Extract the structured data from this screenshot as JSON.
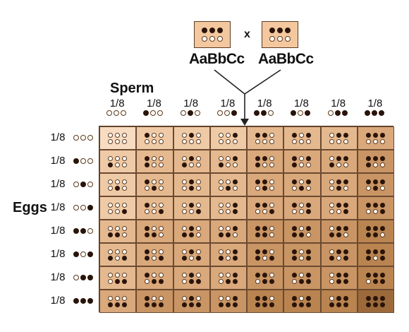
{
  "parents": {
    "left": {
      "label": "AaBbCc",
      "alleles": [
        "d",
        "d",
        "d",
        "w",
        "w",
        "w"
      ]
    },
    "cross_symbol": "x",
    "right": {
      "label": "AaBbCc",
      "alleles": [
        "d",
        "d",
        "d",
        "w",
        "w",
        "w"
      ]
    }
  },
  "axes": {
    "sperm_title": "Sperm",
    "eggs_title": "Eggs"
  },
  "fraction_label": "1/8",
  "gametes": [
    {
      "fraction": "1/8",
      "alleles": [
        "w",
        "w",
        "w"
      ]
    },
    {
      "fraction": "1/8",
      "alleles": [
        "d",
        "w",
        "w"
      ]
    },
    {
      "fraction": "1/8",
      "alleles": [
        "w",
        "d",
        "w"
      ]
    },
    {
      "fraction": "1/8",
      "alleles": [
        "w",
        "w",
        "d"
      ]
    },
    {
      "fraction": "1/8",
      "alleles": [
        "d",
        "d",
        "w"
      ]
    },
    {
      "fraction": "1/8",
      "alleles": [
        "d",
        "w",
        "d"
      ]
    },
    {
      "fraction": "1/8",
      "alleles": [
        "w",
        "d",
        "d"
      ]
    },
    {
      "fraction": "1/8",
      "alleles": [
        "d",
        "d",
        "d"
      ]
    }
  ],
  "shading": [
    "#f7dcc2",
    "#efcaa6",
    "#e5b98f",
    "#d9a87b",
    "#c99564",
    "#b98450",
    "#9c6a3a"
  ],
  "colors": {
    "dark_allele": "#2a140a",
    "light_allele": "#fffaf2",
    "border": "#5a3a24"
  }
}
